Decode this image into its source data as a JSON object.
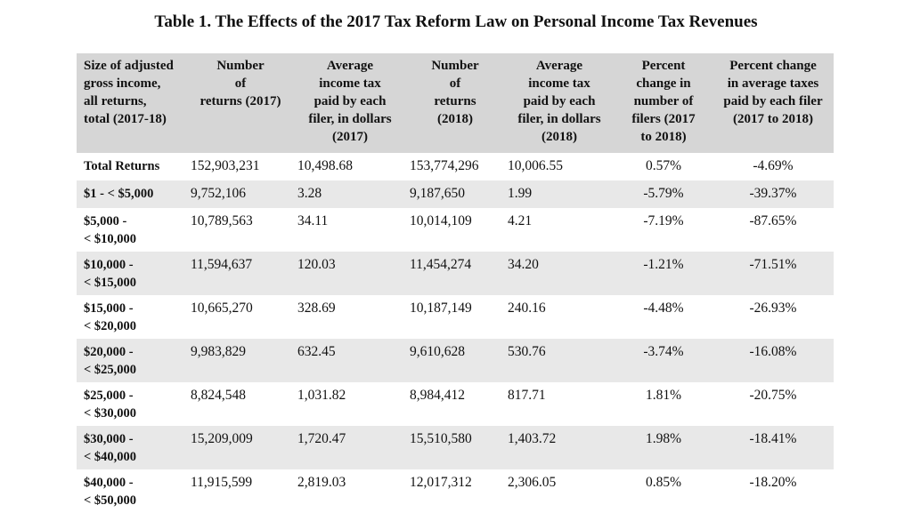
{
  "title": "Table 1. The Effects of the 2017 Tax Reform Law on Personal Income Tax Revenues",
  "columns": [
    "Size of adjusted gross income, all returns, total (2017-18)",
    "Number of returns (2017)",
    "Average income tax paid by each filer, in dollars (2017)",
    "Number of returns (2018)",
    "Average income tax paid by each filer, in dollars (2018)",
    "Percent change in number of filers (2017 to 2018)",
    "Percent change in average taxes paid by each filer (2017 to 2018)"
  ],
  "header_lines": [
    [
      "Size of adjusted",
      "gross income,",
      "all returns,",
      "total (2017-18)"
    ],
    [
      "Number",
      "of",
      "returns (2017)"
    ],
    [
      "Average",
      "income tax",
      "paid by each",
      "filer, in dollars",
      "(2017)"
    ],
    [
      "Number",
      "of",
      "returns",
      "(2018)"
    ],
    [
      "Average",
      "income tax",
      "paid by each",
      "filer, in dollars",
      "(2018)"
    ],
    [
      "Percent",
      "change in",
      "number of",
      "filers (2017",
      "to 2018)"
    ],
    [
      "Percent change",
      "in average taxes",
      "paid by each filer",
      "(2017 to 2018)"
    ]
  ],
  "rows": [
    {
      "label": [
        "Total Returns"
      ],
      "n2017": "152,903,231",
      "avg2017": "10,498.68",
      "n2018": "153,774,296",
      "avg2018": "10,006.55",
      "pct_filers": "0.57%",
      "pct_tax": "-4.69%"
    },
    {
      "label": [
        "$1 - < $5,000"
      ],
      "n2017": "9,752,106",
      "avg2017": "3.28",
      "n2018": "9,187,650",
      "avg2018": "1.99",
      "pct_filers": "-5.79%",
      "pct_tax": "-39.37%"
    },
    {
      "label": [
        "$5,000 -",
        "< $10,000"
      ],
      "n2017": "10,789,563",
      "avg2017": "34.11",
      "n2018": "10,014,109",
      "avg2018": "4.21",
      "pct_filers": "-7.19%",
      "pct_tax": "-87.65%"
    },
    {
      "label": [
        "$10,000 -",
        "< $15,000"
      ],
      "n2017": "11,594,637",
      "avg2017": "120.03",
      "n2018": "11,454,274",
      "avg2018": "34.20",
      "pct_filers": "-1.21%",
      "pct_tax": "-71.51%"
    },
    {
      "label": [
        "$15,000 -",
        "< $20,000"
      ],
      "n2017": "10,665,270",
      "avg2017": "328.69",
      "n2018": "10,187,149",
      "avg2018": "240.16",
      "pct_filers": "-4.48%",
      "pct_tax": "-26.93%"
    },
    {
      "label": [
        "$20,000 -",
        "< $25,000"
      ],
      "n2017": "9,983,829",
      "avg2017": "632.45",
      "n2018": "9,610,628",
      "avg2018": "530.76",
      "pct_filers": "-3.74%",
      "pct_tax": "-16.08%"
    },
    {
      "label": [
        "$25,000 -",
        "< $30,000"
      ],
      "n2017": "8,824,548",
      "avg2017": "1,031.82",
      "n2018": "8,984,412",
      "avg2018": "817.71",
      "pct_filers": "1.81%",
      "pct_tax": "-20.75%"
    },
    {
      "label": [
        "$30,000 -",
        "< $40,000"
      ],
      "n2017": "15,209,009",
      "avg2017": "1,720.47",
      "n2018": "15,510,580",
      "avg2018": "1,403.72",
      "pct_filers": "1.98%",
      "pct_tax": "-18.41%"
    },
    {
      "label": [
        "$40,000 -",
        "< $50,000"
      ],
      "n2017": "11,915,599",
      "avg2017": "2,819.03",
      "n2018": "12,017,312",
      "avg2018": "2,306.05",
      "pct_filers": "0.85%",
      "pct_tax": "-18.20%"
    }
  ]
}
